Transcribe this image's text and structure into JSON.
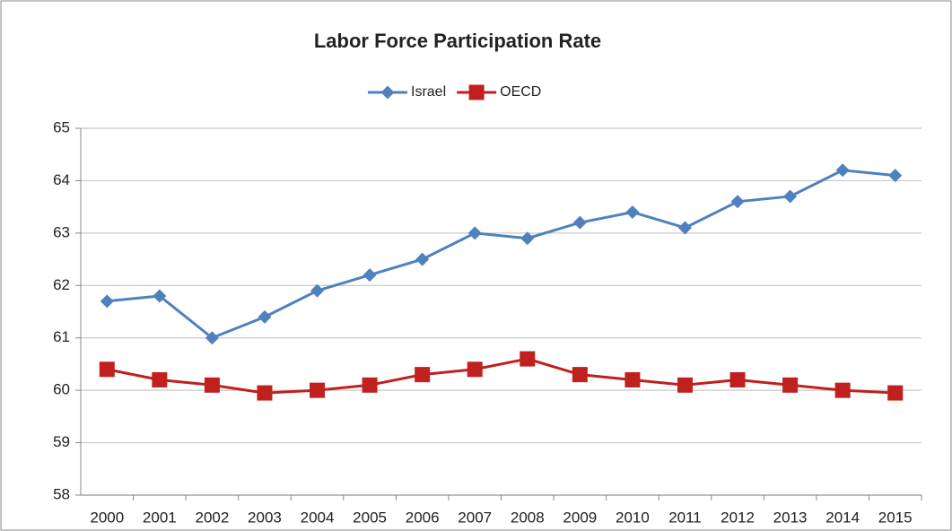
{
  "chart_data": {
    "type": "line",
    "title": "Labor Force Participation Rate",
    "categories": [
      "2000",
      "2001",
      "2002",
      "2003",
      "2004",
      "2005",
      "2006",
      "2007",
      "2008",
      "2009",
      "2010",
      "2011",
      "2012",
      "2013",
      "2014",
      "2015"
    ],
    "series": [
      {
        "name": "Israel",
        "color": "#4f81bd",
        "marker": "diamond",
        "values": [
          61.7,
          61.8,
          61.0,
          61.4,
          61.9,
          62.2,
          62.5,
          63.0,
          62.9,
          63.2,
          63.4,
          63.1,
          63.6,
          63.7,
          64.2,
          64.1
        ]
      },
      {
        "name": "OECD",
        "color": "#c0201e",
        "marker": "square",
        "values": [
          60.4,
          60.2,
          60.1,
          59.95,
          60.0,
          60.1,
          60.3,
          60.4,
          60.6,
          60.3,
          60.2,
          60.1,
          60.2,
          60.1,
          60.0,
          59.95
        ]
      }
    ],
    "ylim": [
      58,
      65
    ],
    "yticks": [
      58,
      59,
      60,
      61,
      62,
      63,
      64,
      65
    ],
    "grid": true,
    "legend": "top"
  }
}
